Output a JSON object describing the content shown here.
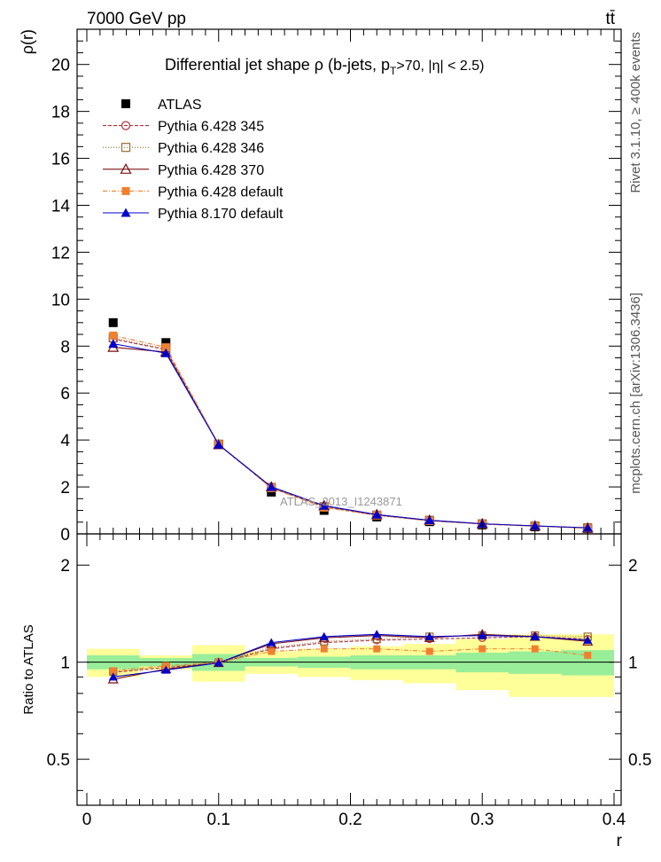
{
  "header": {
    "left": "7000 GeV pp",
    "right": "tt̄"
  },
  "side_texts": {
    "rivet": "Rivet 3.1.10, ≥ 400k events",
    "mcplots": "mcplots.cern.ch [arXiv:1306.3436]"
  },
  "chart_data": [
    {
      "type": "scatter",
      "title": "Differential jet shape  ρ (b-jets, p",
      "title_sub": "T",
      "title_tail": ">70, |η| < 2.5)",
      "ylabel": "ρ(r)",
      "xlabel": "r",
      "watermark": "ATLAS_2013_I1243871",
      "xlim": [
        0,
        0.4
      ],
      "ylim": [
        0,
        21.5
      ],
      "yticks": [
        "0",
        "2",
        "4",
        "6",
        "8",
        "10",
        "12",
        "14",
        "16",
        "18",
        "20"
      ],
      "x": [
        0.02,
        0.06,
        0.1,
        0.14,
        0.18,
        0.22,
        0.26,
        0.3,
        0.34,
        0.38
      ],
      "series": [
        {
          "name": "ATLAS",
          "color": "#000000",
          "marker": "filled-square",
          "dash": "none",
          "values": [
            9.0,
            8.15,
            3.82,
            1.78,
            1.0,
            0.72,
            0.52,
            0.38,
            0.3,
            0.23
          ]
        },
        {
          "name": "Pythia 6.428 345",
          "color": "#b03040",
          "marker": "open-circle",
          "dash": "4,2",
          "values": [
            8.3,
            7.85,
            3.8,
            1.96,
            1.15,
            0.79,
            0.57,
            0.42,
            0.33,
            0.26
          ]
        },
        {
          "name": "Pythia 6.428 346",
          "color": "#9a6a2a",
          "marker": "open-square",
          "dash": "1,2",
          "values": [
            8.35,
            7.88,
            3.82,
            1.98,
            1.16,
            0.8,
            0.58,
            0.43,
            0.34,
            0.26
          ]
        },
        {
          "name": "Pythia 6.428 370",
          "color": "#7a1010",
          "marker": "open-triangle",
          "dash": "none",
          "values": [
            7.95,
            7.75,
            3.8,
            2.0,
            1.2,
            0.82,
            0.58,
            0.43,
            0.34,
            0.25
          ]
        },
        {
          "name": "Pythia 6.428 default",
          "color": "#f08030",
          "marker": "filled-square",
          "dash": "5,2,1,2",
          "values": [
            8.45,
            7.95,
            3.82,
            1.95,
            1.12,
            0.8,
            0.55,
            0.42,
            0.33,
            0.24
          ]
        },
        {
          "name": "Pythia 8.170 default",
          "color": "#0000cc",
          "marker": "filled-triangle",
          "dash": "none",
          "values": [
            8.1,
            7.7,
            3.8,
            2.0,
            1.2,
            0.82,
            0.58,
            0.43,
            0.34,
            0.26
          ]
        }
      ]
    },
    {
      "type": "scatter",
      "ylabel": "Ratio to ATLAS",
      "xlabel": "r",
      "xlim": [
        0,
        0.4
      ],
      "ylim": [
        0.36,
        2.5
      ],
      "log_y": true,
      "yticks": [
        "0.5",
        "1",
        "2"
      ],
      "xticks": [
        "0",
        "0.1",
        "0.2",
        "0.3",
        "0.4"
      ],
      "bands": [
        {
          "x0": 0.0,
          "x1": 0.04,
          "stat": 0.05,
          "tot": 0.1
        },
        {
          "x0": 0.04,
          "x1": 0.08,
          "stat": 0.03,
          "tot": 0.05
        },
        {
          "x0": 0.08,
          "x1": 0.12,
          "stat": 0.06,
          "tot": 0.13
        },
        {
          "x0": 0.12,
          "x1": 0.16,
          "stat": 0.03,
          "tot": 0.08
        },
        {
          "x0": 0.16,
          "x1": 0.2,
          "stat": 0.04,
          "tot": 0.1
        },
        {
          "x0": 0.2,
          "x1": 0.24,
          "stat": 0.05,
          "tot": 0.12
        },
        {
          "x0": 0.24,
          "x1": 0.28,
          "stat": 0.05,
          "tot": 0.14
        },
        {
          "x0": 0.28,
          "x1": 0.32,
          "stat": 0.07,
          "tot": 0.18
        },
        {
          "x0": 0.32,
          "x1": 0.36,
          "stat": 0.08,
          "tot": 0.22
        },
        {
          "x0": 0.36,
          "x1": 0.4,
          "stat": 0.09,
          "tot": 0.22
        }
      ],
      "x": [
        0.02,
        0.06,
        0.1,
        0.14,
        0.18,
        0.22,
        0.26,
        0.3,
        0.34,
        0.38
      ],
      "series": [
        {
          "name": "Pythia 6.428 345",
          "color": "#b03040",
          "marker": "open-circle",
          "dash": "4,2",
          "values": [
            0.93,
            0.962,
            0.995,
            1.1,
            1.15,
            1.17,
            1.18,
            1.19,
            1.2,
            1.18
          ]
        },
        {
          "name": "Pythia 6.428 346",
          "color": "#9a6a2a",
          "marker": "open-square",
          "dash": "1,2",
          "values": [
            0.935,
            0.965,
            0.998,
            1.11,
            1.16,
            1.18,
            1.2,
            1.21,
            1.21,
            1.2
          ]
        },
        {
          "name": "Pythia 6.428 370",
          "color": "#7a1010",
          "marker": "open-triangle",
          "dash": "none",
          "values": [
            0.885,
            0.952,
            0.995,
            1.14,
            1.19,
            1.21,
            1.19,
            1.22,
            1.2,
            1.16
          ]
        },
        {
          "name": "Pythia 6.428 default",
          "color": "#f08030",
          "marker": "filled-square",
          "dash": "5,2,1,2",
          "values": [
            0.94,
            0.975,
            0.998,
            1.08,
            1.1,
            1.1,
            1.08,
            1.1,
            1.1,
            1.05
          ]
        },
        {
          "name": "Pythia 8.170 default",
          "color": "#0000cc",
          "marker": "filled-triangle",
          "dash": "none",
          "values": [
            0.9,
            0.945,
            0.995,
            1.15,
            1.2,
            1.22,
            1.2,
            1.21,
            1.2,
            1.17
          ]
        }
      ]
    }
  ]
}
